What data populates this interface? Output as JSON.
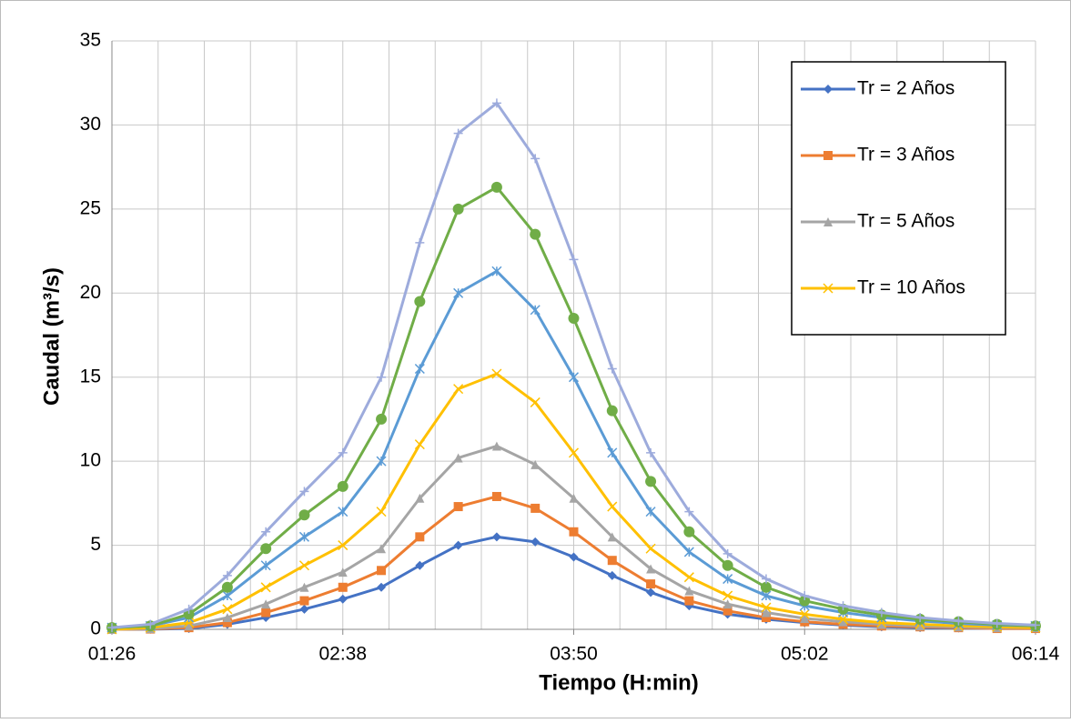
{
  "chart_data": {
    "type": "line",
    "x_label": "Tiempo (H:min)",
    "y_label": "Caudal (m³/s)",
    "x": [
      86,
      98,
      110,
      122,
      134,
      146,
      158,
      170,
      182,
      194,
      206,
      218,
      230,
      242,
      254,
      266,
      278,
      290,
      302,
      314,
      326,
      338,
      350,
      362,
      374
    ],
    "series": [
      {
        "name": "Tr = 2 Años",
        "color": "#4472c4",
        "marker": "diamond",
        "values": [
          0,
          0.01,
          0.05,
          0.3,
          0.7,
          1.2,
          1.8,
          2.5,
          3.8,
          5,
          5.5,
          5.2,
          4.3,
          3.2,
          2.2,
          1.4,
          0.9,
          0.6,
          0.4,
          0.25,
          0.15,
          0.1,
          0.08,
          0.05,
          0.05
        ]
      },
      {
        "name": "Tr = 3 Años",
        "color": "#ed7d31",
        "marker": "square",
        "values": [
          0,
          0.02,
          0.1,
          0.4,
          1,
          1.7,
          2.5,
          3.5,
          5.5,
          7.3,
          7.9,
          7.2,
          5.8,
          4.1,
          2.7,
          1.7,
          1.1,
          0.7,
          0.45,
          0.3,
          0.2,
          0.15,
          0.1,
          0.05,
          0.05
        ]
      },
      {
        "name": "Tr = 5 Años",
        "color": "#a5a5a5",
        "marker": "triangle",
        "values": [
          0,
          0.05,
          0.2,
          0.7,
          1.5,
          2.5,
          3.4,
          4.8,
          7.8,
          10.2,
          10.9,
          9.8,
          7.8,
          5.5,
          3.6,
          2.3,
          1.5,
          1,
          0.65,
          0.45,
          0.3,
          0.2,
          0.15,
          0.1,
          0.1
        ]
      },
      {
        "name": "Tr = 10 Años",
        "color": "#ffc000",
        "marker": "x",
        "values": [
          0,
          0.1,
          0.4,
          1.2,
          2.5,
          3.8,
          5,
          7,
          11,
          14.3,
          15.2,
          13.5,
          10.5,
          7.3,
          4.8,
          3.1,
          2,
          1.3,
          0.9,
          0.6,
          0.4,
          0.3,
          0.2,
          0.15,
          0.1
        ]
      },
      {
        "color": "#5b9bd5",
        "marker": "star",
        "values": [
          0.1,
          0.2,
          0.7,
          2,
          3.8,
          5.5,
          7,
          10,
          15.5,
          20,
          21.3,
          19,
          15,
          10.5,
          7,
          4.6,
          3,
          2,
          1.4,
          1,
          0.7,
          0.5,
          0.35,
          0.25,
          0.2
        ]
      },
      {
        "color": "#70ad47",
        "marker": "circle",
        "values": [
          0.1,
          0.2,
          0.9,
          2.5,
          4.8,
          6.8,
          8.5,
          12.5,
          19.5,
          25,
          26.3,
          23.5,
          18.5,
          13,
          8.8,
          5.8,
          3.8,
          2.5,
          1.7,
          1.2,
          0.85,
          0.6,
          0.45,
          0.3,
          0.2
        ]
      },
      {
        "color": "#9dabdc",
        "marker": "plus",
        "values": [
          0.1,
          0.3,
          1.2,
          3.2,
          5.8,
          8.2,
          10.5,
          15,
          23,
          29.5,
          31.3,
          28,
          22,
          15.5,
          10.5,
          7,
          4.5,
          3,
          2,
          1.4,
          1,
          0.7,
          0.5,
          0.35,
          0.25
        ]
      }
    ],
    "xlim": [
      86,
      374
    ],
    "xticks": [
      {
        "value": 86,
        "label": "01:26"
      },
      {
        "value": 158,
        "label": "02:38"
      },
      {
        "value": 230,
        "label": "03:50"
      },
      {
        "value": 302,
        "label": "05:02"
      },
      {
        "value": 374,
        "label": "06:14"
      }
    ],
    "ylim": [
      0,
      35
    ],
    "yticks": [
      0,
      5,
      10,
      15,
      20,
      25,
      30,
      35
    ],
    "grid": true,
    "legend": "upper right"
  }
}
